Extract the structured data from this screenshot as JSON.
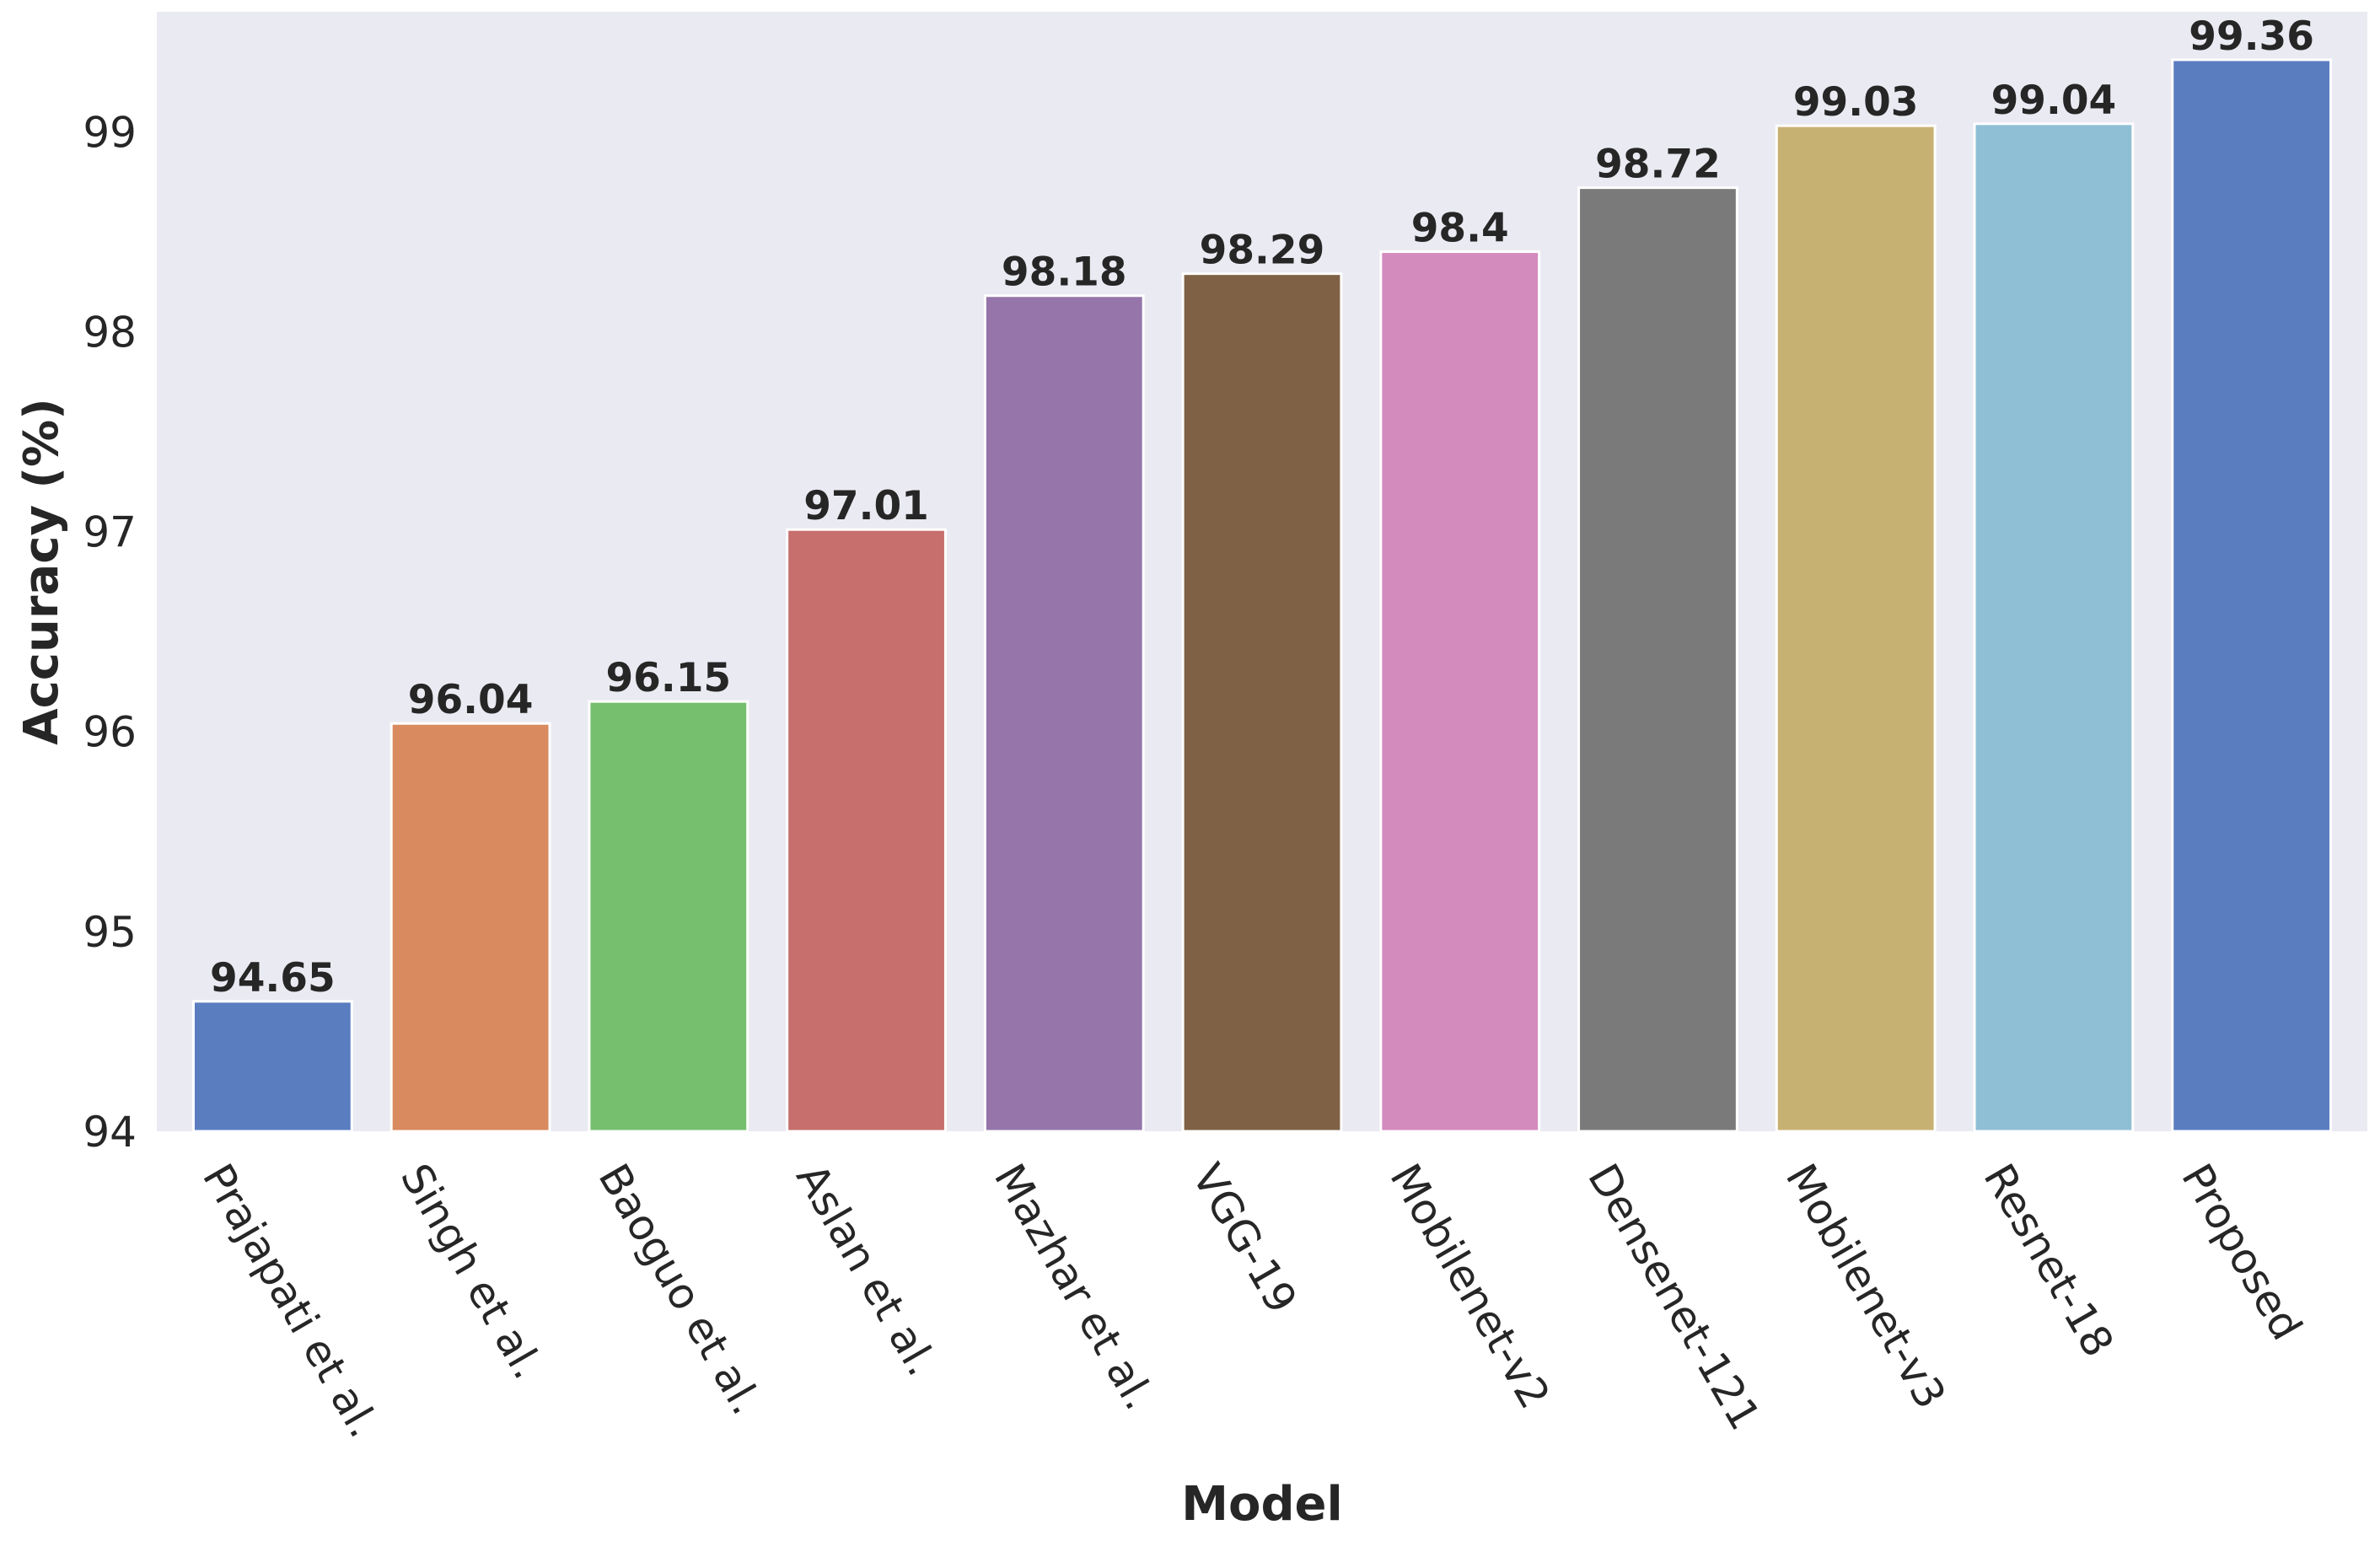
{
  "chart_data": {
    "type": "bar",
    "title": "",
    "xlabel": "Model",
    "ylabel": "Accuracy (%)",
    "ylim": [
      94,
      99.6
    ],
    "yticks": [
      94,
      95,
      96,
      97,
      98,
      99
    ],
    "grid": false,
    "categories": [
      "Prajapati et al.",
      "Singh et al.",
      "Baoguo et al.",
      "Aslan et al.",
      "Mazhar et al.",
      "VGG-19",
      "Mobilenet-v2",
      "Densenet-121",
      "Mobilenet-v3",
      "Resnet-18",
      "Proposed"
    ],
    "values": [
      94.65,
      96.04,
      96.15,
      97.01,
      98.18,
      98.29,
      98.4,
      98.72,
      99.03,
      99.04,
      99.36
    ],
    "value_labels": [
      "94.65",
      "96.04",
      "96.15",
      "97.01",
      "98.18",
      "98.29",
      "98.4",
      "98.72",
      "99.03",
      "99.04",
      "99.36"
    ],
    "colors": [
      "#5a7dc0",
      "#d98a5f",
      "#76bf6f",
      "#c66f6c",
      "#9575aa",
      "#7f6145",
      "#d38abd",
      "#7a7a7a",
      "#c7b172",
      "#8fbfd5",
      "#5a7dc0"
    ],
    "plot_background": "#eaeaf2"
  }
}
